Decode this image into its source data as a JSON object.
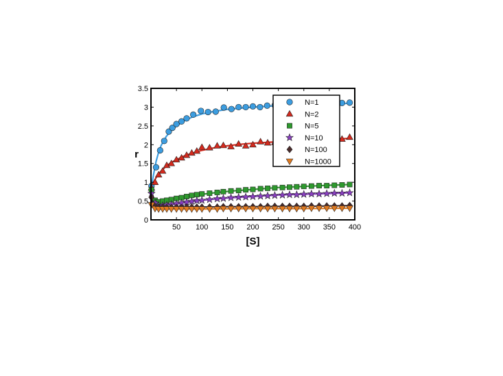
{
  "chart_data": {
    "type": "scatter",
    "xlabel": "[S]",
    "ylabel": "r",
    "xlim": [
      0,
      400
    ],
    "ylim": [
      0,
      3.5
    ],
    "xticks": [
      50,
      100,
      150,
      200,
      250,
      300,
      350,
      400
    ],
    "yticks": [
      0,
      0.5,
      1,
      1.5,
      2,
      2.5,
      3,
      3.5
    ],
    "grid": false,
    "legend_position": "top-right",
    "series": [
      {
        "name": "N=1",
        "color": "#3c9de0",
        "marker": "circle",
        "points": [
          [
            1,
            0.9
          ],
          [
            10,
            1.4
          ],
          [
            18,
            1.85
          ],
          [
            26,
            2.1
          ],
          [
            35,
            2.35
          ],
          [
            42,
            2.45
          ],
          [
            50,
            2.55
          ],
          [
            60,
            2.62
          ],
          [
            70,
            2.7
          ],
          [
            83,
            2.8
          ],
          [
            98,
            2.9
          ],
          [
            112,
            2.87
          ],
          [
            127,
            2.88
          ],
          [
            143,
            2.99
          ],
          [
            158,
            2.95
          ],
          [
            172,
            3.0
          ],
          [
            186,
            3.0
          ],
          [
            200,
            3.02
          ],
          [
            214,
            3.0
          ],
          [
            228,
            3.04
          ],
          [
            243,
            3.05
          ],
          [
            257,
            3.05
          ],
          [
            272,
            3.04
          ],
          [
            286,
            3.05
          ],
          [
            301,
            3.06
          ],
          [
            315,
            3.07
          ],
          [
            330,
            3.08
          ],
          [
            344,
            3.08
          ],
          [
            360,
            3.1
          ],
          [
            375,
            3.11
          ],
          [
            390,
            3.12
          ]
        ],
        "curve": [
          [
            1,
            0.9
          ],
          [
            5,
            1.2
          ],
          [
            10,
            1.55
          ],
          [
            15,
            1.8
          ],
          [
            20,
            1.98
          ],
          [
            30,
            2.22
          ],
          [
            40,
            2.38
          ],
          [
            50,
            2.5
          ],
          [
            65,
            2.63
          ],
          [
            80,
            2.73
          ],
          [
            100,
            2.82
          ],
          [
            125,
            2.89
          ],
          [
            150,
            2.94
          ],
          [
            200,
            3.0
          ],
          [
            250,
            3.04
          ],
          [
            300,
            3.07
          ],
          [
            350,
            3.09
          ],
          [
            390,
            3.1
          ]
        ]
      },
      {
        "name": "N=2",
        "color": "#d42a1e",
        "marker": "triangle-up",
        "points": [
          [
            1,
            0.85
          ],
          [
            8,
            1.0
          ],
          [
            15,
            1.2
          ],
          [
            23,
            1.3
          ],
          [
            31,
            1.45
          ],
          [
            40,
            1.5
          ],
          [
            50,
            1.6
          ],
          [
            60,
            1.65
          ],
          [
            70,
            1.72
          ],
          [
            80,
            1.78
          ],
          [
            90,
            1.83
          ],
          [
            100,
            1.93
          ],
          [
            115,
            1.92
          ],
          [
            130,
            1.97
          ],
          [
            142,
            1.98
          ],
          [
            157,
            1.95
          ],
          [
            172,
            2.02
          ],
          [
            186,
            1.97
          ],
          [
            200,
            2.0
          ],
          [
            215,
            2.08
          ],
          [
            229,
            2.05
          ],
          [
            243,
            2.06
          ],
          [
            258,
            2.1
          ],
          [
            272,
            2.08
          ],
          [
            286,
            2.09
          ],
          [
            300,
            2.1
          ],
          [
            315,
            2.12
          ],
          [
            330,
            2.12
          ],
          [
            345,
            2.13
          ],
          [
            360,
            2.14
          ],
          [
            375,
            2.15
          ],
          [
            390,
            2.2
          ]
        ],
        "curve": [
          [
            1,
            0.85
          ],
          [
            5,
            1.0
          ],
          [
            10,
            1.12
          ],
          [
            20,
            1.3
          ],
          [
            30,
            1.43
          ],
          [
            40,
            1.53
          ],
          [
            50,
            1.6
          ],
          [
            65,
            1.7
          ],
          [
            80,
            1.77
          ],
          [
            100,
            1.85
          ],
          [
            125,
            1.92
          ],
          [
            150,
            1.97
          ],
          [
            175,
            2.01
          ],
          [
            200,
            2.04
          ],
          [
            250,
            2.08
          ],
          [
            300,
            2.12
          ],
          [
            350,
            2.14
          ],
          [
            390,
            2.17
          ]
        ]
      },
      {
        "name": "N=5",
        "color": "#2e9a2e",
        "marker": "square",
        "points": [
          [
            1,
            0.8
          ],
          [
            8,
            0.52
          ],
          [
            15,
            0.48
          ],
          [
            23,
            0.5
          ],
          [
            31,
            0.52
          ],
          [
            40,
            0.54
          ],
          [
            50,
            0.57
          ],
          [
            60,
            0.59
          ],
          [
            70,
            0.62
          ],
          [
            80,
            0.65
          ],
          [
            90,
            0.67
          ],
          [
            100,
            0.69
          ],
          [
            115,
            0.71
          ],
          [
            130,
            0.73
          ],
          [
            142,
            0.75
          ],
          [
            157,
            0.77
          ],
          [
            172,
            0.78
          ],
          [
            186,
            0.8
          ],
          [
            200,
            0.81
          ],
          [
            215,
            0.83
          ],
          [
            229,
            0.84
          ],
          [
            243,
            0.85
          ],
          [
            258,
            0.86
          ],
          [
            272,
            0.87
          ],
          [
            286,
            0.88
          ],
          [
            300,
            0.89
          ],
          [
            315,
            0.9
          ],
          [
            330,
            0.91
          ],
          [
            345,
            0.91
          ],
          [
            360,
            0.92
          ],
          [
            375,
            0.93
          ],
          [
            390,
            0.94
          ]
        ],
        "curve": [
          [
            1,
            0.75
          ],
          [
            5,
            0.55
          ],
          [
            10,
            0.5
          ],
          [
            20,
            0.5
          ],
          [
            40,
            0.54
          ],
          [
            60,
            0.59
          ],
          [
            80,
            0.64
          ],
          [
            100,
            0.68
          ],
          [
            130,
            0.73
          ],
          [
            160,
            0.77
          ],
          [
            200,
            0.81
          ],
          [
            250,
            0.86
          ],
          [
            300,
            0.89
          ],
          [
            350,
            0.92
          ],
          [
            390,
            0.94
          ]
        ]
      },
      {
        "name": "N=10",
        "color": "#8a3fc2",
        "marker": "star",
        "points": [
          [
            1,
            0.7
          ],
          [
            8,
            0.45
          ],
          [
            15,
            0.38
          ],
          [
            23,
            0.38
          ],
          [
            31,
            0.39
          ],
          [
            40,
            0.41
          ],
          [
            50,
            0.43
          ],
          [
            60,
            0.45
          ],
          [
            70,
            0.47
          ],
          [
            80,
            0.49
          ],
          [
            90,
            0.51
          ],
          [
            100,
            0.52
          ],
          [
            115,
            0.54
          ],
          [
            130,
            0.56
          ],
          [
            142,
            0.57
          ],
          [
            157,
            0.59
          ],
          [
            172,
            0.6
          ],
          [
            186,
            0.61
          ],
          [
            200,
            0.62
          ],
          [
            215,
            0.63
          ],
          [
            229,
            0.64
          ],
          [
            243,
            0.65
          ],
          [
            258,
            0.66
          ],
          [
            272,
            0.67
          ],
          [
            286,
            0.67
          ],
          [
            300,
            0.68
          ],
          [
            315,
            0.69
          ],
          [
            330,
            0.69
          ],
          [
            345,
            0.7
          ],
          [
            360,
            0.71
          ],
          [
            375,
            0.71
          ],
          [
            390,
            0.72
          ]
        ],
        "curve": [
          [
            1,
            0.65
          ],
          [
            5,
            0.45
          ],
          [
            10,
            0.39
          ],
          [
            20,
            0.38
          ],
          [
            40,
            0.41
          ],
          [
            60,
            0.45
          ],
          [
            80,
            0.49
          ],
          [
            100,
            0.52
          ],
          [
            130,
            0.56
          ],
          [
            160,
            0.59
          ],
          [
            200,
            0.62
          ],
          [
            250,
            0.66
          ],
          [
            300,
            0.68
          ],
          [
            350,
            0.7
          ],
          [
            390,
            0.72
          ]
        ]
      },
      {
        "name": "N=100",
        "color": "#4a2b2b",
        "marker": "diamond",
        "points": [
          [
            1,
            0.6
          ],
          [
            8,
            0.36
          ],
          [
            15,
            0.33
          ],
          [
            23,
            0.33
          ],
          [
            31,
            0.33
          ],
          [
            40,
            0.33
          ],
          [
            50,
            0.33
          ],
          [
            60,
            0.33
          ],
          [
            70,
            0.34
          ],
          [
            80,
            0.34
          ],
          [
            90,
            0.34
          ],
          [
            100,
            0.34
          ],
          [
            115,
            0.34
          ],
          [
            130,
            0.34
          ],
          [
            142,
            0.35
          ],
          [
            157,
            0.35
          ],
          [
            172,
            0.35
          ],
          [
            186,
            0.35
          ],
          [
            200,
            0.35
          ],
          [
            215,
            0.35
          ],
          [
            229,
            0.36
          ],
          [
            243,
            0.36
          ],
          [
            258,
            0.36
          ],
          [
            272,
            0.36
          ],
          [
            286,
            0.36
          ],
          [
            300,
            0.36
          ],
          [
            315,
            0.37
          ],
          [
            330,
            0.37
          ],
          [
            345,
            0.37
          ],
          [
            360,
            0.37
          ],
          [
            375,
            0.37
          ],
          [
            390,
            0.38
          ]
        ],
        "curve": [
          [
            1,
            0.55
          ],
          [
            5,
            0.38
          ],
          [
            10,
            0.34
          ],
          [
            20,
            0.33
          ],
          [
            50,
            0.33
          ],
          [
            100,
            0.34
          ],
          [
            150,
            0.35
          ],
          [
            200,
            0.35
          ],
          [
            250,
            0.36
          ],
          [
            300,
            0.36
          ],
          [
            350,
            0.37
          ],
          [
            390,
            0.38
          ]
        ]
      },
      {
        "name": "N=1000",
        "color": "#e07a20",
        "marker": "triangle-down",
        "points": [
          [
            1,
            0.4
          ],
          [
            8,
            0.3
          ],
          [
            15,
            0.29
          ],
          [
            23,
            0.29
          ],
          [
            31,
            0.29
          ],
          [
            40,
            0.29
          ],
          [
            50,
            0.29
          ],
          [
            60,
            0.29
          ],
          [
            70,
            0.29
          ],
          [
            80,
            0.29
          ],
          [
            90,
            0.29
          ],
          [
            100,
            0.29
          ],
          [
            115,
            0.29
          ],
          [
            130,
            0.29
          ],
          [
            142,
            0.3
          ],
          [
            157,
            0.3
          ],
          [
            172,
            0.3
          ],
          [
            186,
            0.3
          ],
          [
            200,
            0.3
          ],
          [
            215,
            0.3
          ],
          [
            229,
            0.3
          ],
          [
            243,
            0.3
          ],
          [
            258,
            0.3
          ],
          [
            272,
            0.3
          ],
          [
            286,
            0.3
          ],
          [
            300,
            0.3
          ],
          [
            315,
            0.31
          ],
          [
            330,
            0.31
          ],
          [
            345,
            0.31
          ],
          [
            360,
            0.31
          ],
          [
            375,
            0.31
          ],
          [
            390,
            0.31
          ]
        ],
        "curve": [
          [
            1,
            0.38
          ],
          [
            5,
            0.31
          ],
          [
            10,
            0.29
          ],
          [
            50,
            0.29
          ],
          [
            100,
            0.29
          ],
          [
            200,
            0.3
          ],
          [
            300,
            0.3
          ],
          [
            390,
            0.31
          ]
        ]
      }
    ]
  }
}
